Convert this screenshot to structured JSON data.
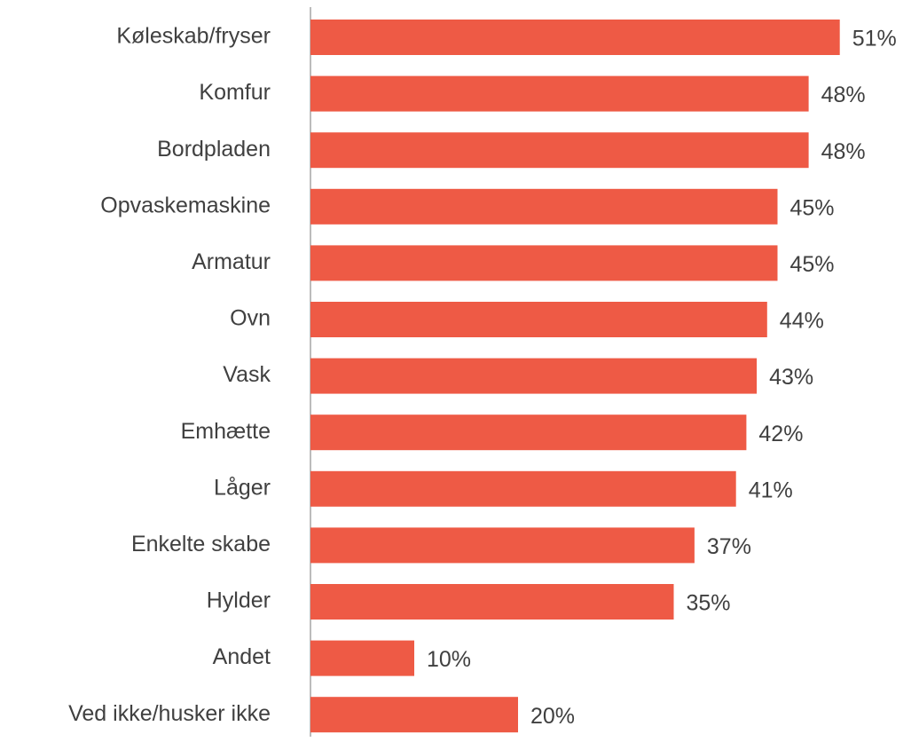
{
  "chart_data": {
    "type": "bar",
    "orientation": "horizontal",
    "categories": [
      "Køleskab/fryser",
      "Komfur",
      "Bordpladen",
      "Opvaskemaskine",
      "Armatur",
      "Ovn",
      "Vask",
      "Emhætte",
      "Låger",
      "Enkelte skabe",
      "Hylder",
      "Andet",
      "Ved ikke/husker ikke"
    ],
    "values": [
      51,
      48,
      48,
      45,
      45,
      44,
      43,
      42,
      41,
      37,
      35,
      10,
      20
    ],
    "value_labels": [
      "51%",
      "48%",
      "48%",
      "45%",
      "45%",
      "44%",
      "43%",
      "42%",
      "41%",
      "37%",
      "35%",
      "10%",
      "20%"
    ],
    "color": "#ee5a45"
  }
}
